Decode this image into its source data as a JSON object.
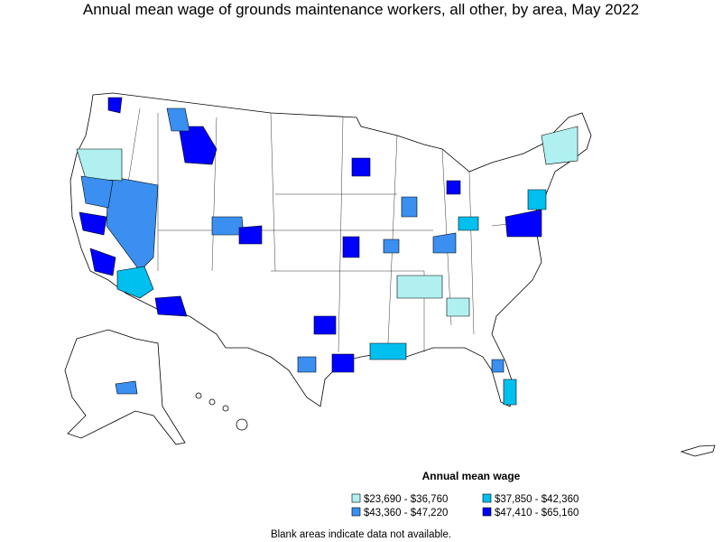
{
  "title": "Annual mean wage of grounds maintenance workers, all other, by area, May 2022",
  "legend": {
    "title": "Annual mean wage",
    "items": [
      {
        "label": "$23,690 - $36,760",
        "color": "#b0f0f0"
      },
      {
        "label": "$37,850 - $42,360",
        "color": "#00c0f0"
      },
      {
        "label": "$43,360 - $47,220",
        "color": "#3a8ff0"
      },
      {
        "label": "$47,410 - $65,160",
        "color": "#0000ff"
      }
    ]
  },
  "note": "Blank areas indicate data not available."
}
